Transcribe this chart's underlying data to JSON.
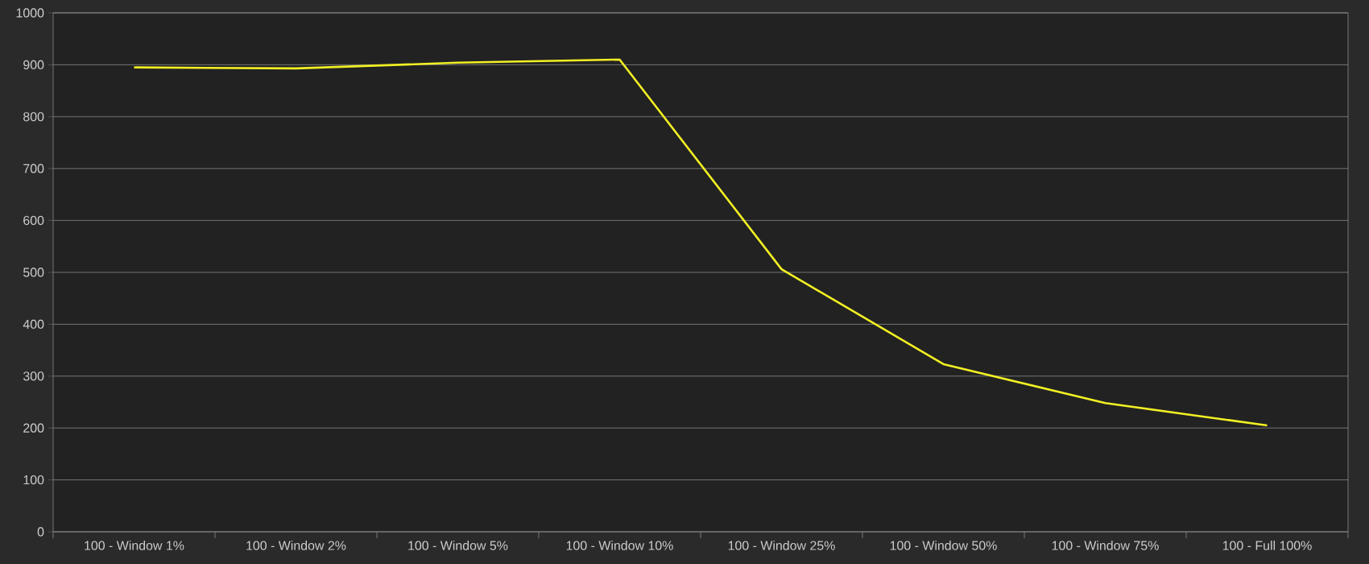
{
  "chart_data": {
    "type": "line",
    "categories": [
      "100 - Window 1%",
      "100 - Window 2%",
      "100 - Window 5%",
      "100 - Window 10%",
      "100 - Window 25%",
      "100 - Window 50%",
      "100 - Window 75%",
      "100 - Full 100%"
    ],
    "series": [
      {
        "color": "#f2f024",
        "values": [
          895,
          893,
          904,
          910,
          506,
          323,
          248,
          205
        ]
      }
    ],
    "ylim": [
      0,
      1000
    ],
    "yticks": [
      0,
      100,
      200,
      300,
      400,
      500,
      600,
      700,
      800,
      900,
      1000
    ],
    "grid": "y",
    "marker": "none",
    "line_style": "solid"
  }
}
